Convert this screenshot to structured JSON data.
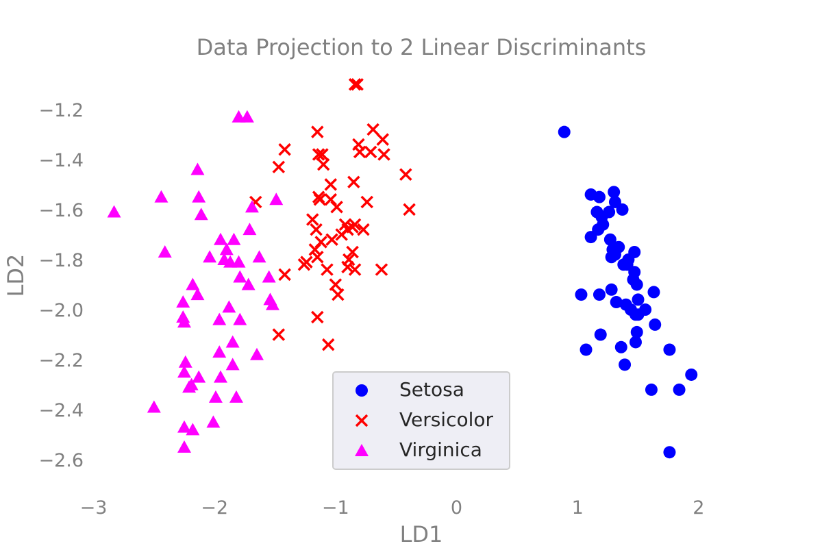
{
  "chart_data": {
    "type": "scatter",
    "title": "Data Projection to 2 Linear Discriminants",
    "xlabel": "LD1",
    "ylabel": "LD2",
    "xlim": [
      -3.15,
      2.85
    ],
    "ylim": [
      -2.72,
      -1.05
    ],
    "xticks": [
      -3,
      -2,
      -1,
      0,
      1,
      2
    ],
    "xtick_labels": [
      "−3",
      "−2",
      "−1",
      "0",
      "1",
      "2"
    ],
    "yticks": [
      -1.2,
      -1.4,
      -1.6,
      -1.8,
      -2.0,
      -2.2,
      -2.4,
      -2.6
    ],
    "ytick_labels": [
      "−1.2",
      "−1.4",
      "−1.6",
      "−1.8",
      "−2.0",
      "−2.2",
      "−2.4",
      "−2.6"
    ],
    "grid": false,
    "legend_position": "bottom-center",
    "series": [
      {
        "name": "Setosa",
        "marker": "circle",
        "color": "#0000ff",
        "points": [
          [
            0.89,
            -1.29
          ],
          [
            1.11,
            -1.54
          ],
          [
            1.18,
            -1.55
          ],
          [
            1.16,
            -1.61
          ],
          [
            1.3,
            -1.53
          ],
          [
            1.31,
            -1.57
          ],
          [
            1.2,
            -1.63
          ],
          [
            1.26,
            -1.61
          ],
          [
            1.37,
            -1.6
          ],
          [
            1.17,
            -1.68
          ],
          [
            1.21,
            -1.66
          ],
          [
            1.11,
            -1.71
          ],
          [
            1.27,
            -1.72
          ],
          [
            1.29,
            -1.76
          ],
          [
            1.34,
            -1.75
          ],
          [
            1.31,
            -1.78
          ],
          [
            1.47,
            -1.77
          ],
          [
            1.28,
            -1.79
          ],
          [
            1.38,
            -1.82
          ],
          [
            1.41,
            -1.82
          ],
          [
            1.42,
            -1.8
          ],
          [
            1.47,
            -1.85
          ],
          [
            1.46,
            -1.88
          ],
          [
            1.49,
            -1.9
          ],
          [
            1.03,
            -1.94
          ],
          [
            1.18,
            -1.94
          ],
          [
            1.28,
            -1.92
          ],
          [
            1.32,
            -1.97
          ],
          [
            1.4,
            -1.98
          ],
          [
            1.44,
            -2.0
          ],
          [
            1.5,
            -1.96
          ],
          [
            1.48,
            -2.02
          ],
          [
            1.56,
            -2.0
          ],
          [
            1.63,
            -1.93
          ],
          [
            1.5,
            -2.02
          ],
          [
            1.49,
            -2.09
          ],
          [
            1.64,
            -2.06
          ],
          [
            1.19,
            -2.1
          ],
          [
            1.48,
            -2.13
          ],
          [
            1.07,
            -2.16
          ],
          [
            1.36,
            -2.15
          ],
          [
            1.39,
            -2.22
          ],
          [
            1.76,
            -2.16
          ],
          [
            1.94,
            -2.26
          ],
          [
            1.61,
            -2.32
          ],
          [
            1.84,
            -2.32
          ],
          [
            1.76,
            -2.57
          ]
        ]
      },
      {
        "name": "Versicolor",
        "marker": "x",
        "color": "#ff0000",
        "points": [
          [
            -0.82,
            -1.1
          ],
          [
            -0.84,
            -1.1
          ],
          [
            -1.15,
            -1.29
          ],
          [
            -0.69,
            -1.28
          ],
          [
            -0.81,
            -1.34
          ],
          [
            -0.61,
            -1.32
          ],
          [
            -0.71,
            -1.37
          ],
          [
            -0.8,
            -1.37
          ],
          [
            -1.42,
            -1.36
          ],
          [
            -1.14,
            -1.38
          ],
          [
            -1.11,
            -1.38
          ],
          [
            -1.1,
            -1.42
          ],
          [
            -0.6,
            -1.38
          ],
          [
            -1.47,
            -1.43
          ],
          [
            -0.42,
            -1.46
          ],
          [
            -0.85,
            -1.49
          ],
          [
            -1.04,
            -1.5
          ],
          [
            -1.14,
            -1.55
          ],
          [
            -1.13,
            -1.56
          ],
          [
            -1.04,
            -1.56
          ],
          [
            -0.74,
            -1.57
          ],
          [
            -1.66,
            -1.57
          ],
          [
            -0.99,
            -1.59
          ],
          [
            -0.39,
            -1.6
          ],
          [
            -1.19,
            -1.64
          ],
          [
            -0.92,
            -1.66
          ],
          [
            -0.86,
            -1.67
          ],
          [
            -0.9,
            -1.68
          ],
          [
            -0.77,
            -1.68
          ],
          [
            -1.16,
            -1.68
          ],
          [
            -0.95,
            -1.7
          ],
          [
            -1.12,
            -1.73
          ],
          [
            -1.03,
            -1.72
          ],
          [
            -0.84,
            -1.66
          ],
          [
            -1.17,
            -1.76
          ],
          [
            -1.15,
            -1.79
          ],
          [
            -0.86,
            -1.77
          ],
          [
            -1.24,
            -1.81
          ],
          [
            -1.26,
            -1.82
          ],
          [
            -0.89,
            -1.8
          ],
          [
            -0.9,
            -1.83
          ],
          [
            -0.84,
            -1.84
          ],
          [
            -1.07,
            -1.84
          ],
          [
            -0.62,
            -1.84
          ],
          [
            -1.42,
            -1.86
          ],
          [
            -1.0,
            -1.9
          ],
          [
            -0.98,
            -1.94
          ],
          [
            -1.15,
            -2.03
          ],
          [
            -1.47,
            -2.1
          ],
          [
            -1.06,
            -2.14
          ]
        ]
      },
      {
        "name": "Virginica",
        "marker": "triangle",
        "color": "#ff00ff",
        "points": [
          [
            -1.8,
            -1.23
          ],
          [
            -1.73,
            -1.23
          ],
          [
            -2.14,
            -1.44
          ],
          [
            -2.83,
            -1.61
          ],
          [
            -2.44,
            -1.55
          ],
          [
            -2.13,
            -1.55
          ],
          [
            -1.49,
            -1.56
          ],
          [
            -2.11,
            -1.62
          ],
          [
            -1.69,
            -1.59
          ],
          [
            -1.71,
            -1.68
          ],
          [
            -1.95,
            -1.72
          ],
          [
            -1.84,
            -1.72
          ],
          [
            -1.9,
            -1.76
          ],
          [
            -2.04,
            -1.79
          ],
          [
            -1.92,
            -1.8
          ],
          [
            -1.87,
            -1.81
          ],
          [
            -1.8,
            -1.81
          ],
          [
            -2.41,
            -1.77
          ],
          [
            -1.63,
            -1.79
          ],
          [
            -1.79,
            -1.87
          ],
          [
            -2.18,
            -1.9
          ],
          [
            -1.72,
            -1.9
          ],
          [
            -2.14,
            -1.94
          ],
          [
            -1.55,
            -1.87
          ],
          [
            -2.26,
            -1.97
          ],
          [
            -1.54,
            -1.96
          ],
          [
            -1.52,
            -1.98
          ],
          [
            -1.88,
            -1.99
          ],
          [
            -2.26,
            -2.03
          ],
          [
            -1.96,
            -2.04
          ],
          [
            -1.79,
            -2.04
          ],
          [
            -2.25,
            -2.05
          ],
          [
            -1.85,
            -2.13
          ],
          [
            -1.96,
            -2.17
          ],
          [
            -1.65,
            -2.18
          ],
          [
            -2.24,
            -2.21
          ],
          [
            -1.85,
            -2.22
          ],
          [
            -2.25,
            -2.25
          ],
          [
            -2.13,
            -2.27
          ],
          [
            -1.95,
            -2.27
          ],
          [
            -2.19,
            -2.3
          ],
          [
            -2.21,
            -2.31
          ],
          [
            -1.99,
            -2.35
          ],
          [
            -1.82,
            -2.35
          ],
          [
            -2.5,
            -2.39
          ],
          [
            -2.01,
            -2.45
          ],
          [
            -2.25,
            -2.47
          ],
          [
            -2.18,
            -2.48
          ],
          [
            -2.25,
            -2.55
          ]
        ]
      }
    ]
  }
}
